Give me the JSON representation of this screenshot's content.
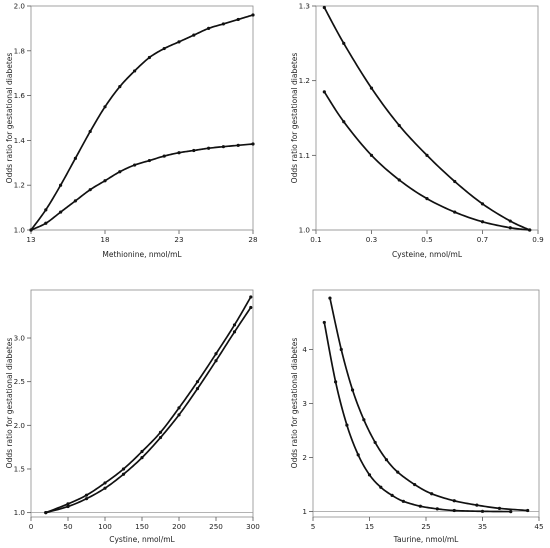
{
  "chart_data": [
    {
      "type": "line",
      "panel": "top-left",
      "xlabel": "Methionine, nmol/mL",
      "ylabel": "Odds ratio for gestational diabetes",
      "xlim": [
        13,
        28
      ],
      "ylim": [
        1.0,
        2.0
      ],
      "xticks": [
        13,
        18,
        23,
        28
      ],
      "yticks": [
        1.0,
        1.2,
        1.4,
        1.6,
        1.8,
        2.0
      ],
      "xtick_labels": [
        "13",
        "18",
        "23",
        "28"
      ],
      "ytick_labels": [
        "1.0",
        "1.2",
        "1.4",
        "1.6",
        "1.8",
        "2.0"
      ],
      "reference_line": 1.0,
      "series": [
        {
          "x": [
            13.0,
            14,
            15,
            16,
            17,
            18,
            19,
            20,
            21,
            22,
            23,
            24,
            25,
            26,
            27,
            28
          ],
          "y": [
            1.0,
            1.09,
            1.2,
            1.32,
            1.44,
            1.55,
            1.64,
            1.71,
            1.77,
            1.81,
            1.84,
            1.87,
            1.9,
            1.92,
            1.94,
            1.96
          ]
        },
        {
          "x": [
            13.0,
            14,
            15,
            16,
            17,
            18,
            19,
            20,
            21,
            22,
            23,
            24,
            25,
            26,
            27,
            28
          ],
          "y": [
            1.0,
            1.03,
            1.08,
            1.13,
            1.18,
            1.22,
            1.26,
            1.29,
            1.31,
            1.33,
            1.345,
            1.355,
            1.365,
            1.372,
            1.378,
            1.384
          ]
        }
      ]
    },
    {
      "type": "line",
      "panel": "top-right",
      "xlabel": "Cysteine, nmol/mL",
      "ylabel": "Odds ratio for gestational diabetes",
      "xlim": [
        0.1,
        0.9
      ],
      "ylim": [
        1.0,
        1.3
      ],
      "xticks": [
        0.1,
        0.3,
        0.5,
        0.7,
        0.9
      ],
      "yticks": [
        1.0,
        1.1,
        1.2,
        1.3
      ],
      "xtick_labels": [
        "0.1",
        "0.3",
        "0.5",
        "0.7",
        "0.9"
      ],
      "ytick_labels": [
        "1.0",
        "1.1",
        "1.2",
        "1.3"
      ],
      "reference_line": 1.0,
      "series": [
        {
          "x": [
            0.13,
            0.2,
            0.3,
            0.4,
            0.5,
            0.6,
            0.7,
            0.8,
            0.87
          ],
          "y": [
            1.298,
            1.25,
            1.19,
            1.14,
            1.1,
            1.065,
            1.035,
            1.012,
            1.0
          ]
        },
        {
          "x": [
            0.13,
            0.2,
            0.3,
            0.4,
            0.5,
            0.6,
            0.7,
            0.8,
            0.87
          ],
          "y": [
            1.185,
            1.145,
            1.1,
            1.067,
            1.042,
            1.024,
            1.011,
            1.003,
            1.0
          ]
        }
      ]
    },
    {
      "type": "line",
      "panel": "bottom-left",
      "xlabel": "Cystine, nmol/mL",
      "ylabel": "Odds ratio for gestational diabetes",
      "xlim": [
        0,
        300
      ],
      "ylim": [
        0.95,
        3.55
      ],
      "xticks": [
        0,
        50,
        100,
        150,
        200,
        250,
        300
      ],
      "yticks": [
        1.0,
        1.5,
        2.0,
        2.5,
        3.0
      ],
      "xtick_labels": [
        "0",
        "50",
        "100",
        "150",
        "200",
        "250",
        "300"
      ],
      "ytick_labels": [
        "1.0",
        "1.5",
        "2.0",
        "2.5",
        "3.0"
      ],
      "reference_line": 1.0,
      "series": [
        {
          "x": [
            20,
            50,
            75,
            100,
            125,
            150,
            175,
            200,
            225,
            250,
            275,
            297
          ],
          "y": [
            1.0,
            1.1,
            1.2,
            1.34,
            1.5,
            1.7,
            1.92,
            2.2,
            2.5,
            2.82,
            3.15,
            3.47
          ]
        },
        {
          "x": [
            20,
            50,
            75,
            100,
            125,
            150,
            175,
            200,
            225,
            250,
            275,
            297
          ],
          "y": [
            1.0,
            1.07,
            1.16,
            1.28,
            1.44,
            1.63,
            1.86,
            2.12,
            2.42,
            2.74,
            3.07,
            3.35
          ]
        }
      ]
    },
    {
      "type": "line",
      "panel": "bottom-right",
      "xlabel": "Taurine, nmol/mL",
      "ylabel": "Odds ratio for gestational diabetes",
      "xlim": [
        5,
        45
      ],
      "ylim": [
        0.9,
        5.1
      ],
      "xticks": [
        5,
        15,
        25,
        35,
        45
      ],
      "yticks": [
        1,
        2,
        3,
        4
      ],
      "xtick_labels": [
        "5",
        "15",
        "25",
        "35",
        "45"
      ],
      "ytick_labels": [
        "1",
        "2",
        "3",
        "4"
      ],
      "reference_line": 1.0,
      "series": [
        {
          "x": [
            8.0,
            10,
            12,
            14,
            16,
            18,
            20,
            23,
            26,
            30,
            34,
            38,
            43
          ],
          "y": [
            4.95,
            4.0,
            3.25,
            2.7,
            2.28,
            1.96,
            1.73,
            1.5,
            1.33,
            1.2,
            1.12,
            1.06,
            1.02
          ]
        },
        {
          "x": [
            7.0,
            9,
            11,
            13,
            15,
            17,
            19,
            21,
            24,
            27,
            30,
            35,
            40
          ],
          "y": [
            4.5,
            3.4,
            2.6,
            2.05,
            1.68,
            1.45,
            1.3,
            1.19,
            1.1,
            1.05,
            1.02,
            1.005,
            1.0
          ]
        }
      ]
    }
  ]
}
